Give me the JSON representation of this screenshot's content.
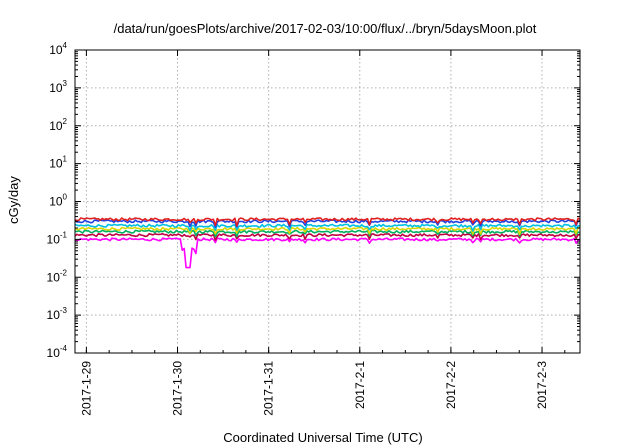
{
  "chart_data": {
    "type": "line",
    "title": "/data/run/goesPlots/archive/2017-02-03/10:00/flux/../bryn/5daysMoon.plot",
    "xlabel": "Coordinated Universal Time (UTC)",
    "ylabel": "cGy/day",
    "y_scale": "log",
    "ylim": [
      0.0001,
      10000
    ],
    "y_ticks": [
      {
        "base": "10",
        "exp": "-4",
        "value": 0.0001
      },
      {
        "base": "10",
        "exp": "-3",
        "value": 0.001
      },
      {
        "base": "10",
        "exp": "-2",
        "value": 0.01
      },
      {
        "base": "10",
        "exp": "-1",
        "value": 0.1
      },
      {
        "base": "10",
        "exp": "0",
        "value": 1
      },
      {
        "base": "10",
        "exp": "1",
        "value": 10
      },
      {
        "base": "10",
        "exp": "2",
        "value": 100
      },
      {
        "base": "10",
        "exp": "3",
        "value": 1000
      },
      {
        "base": "10",
        "exp": "4",
        "value": 10000
      }
    ],
    "x_ticks": [
      "2017-1-29",
      "2017-1-30",
      "2017-1-31",
      "2017-2-1",
      "2017-2-2",
      "2017-2-3"
    ],
    "xlim": [
      "2017-01-28T21:00",
      "2017-02-03T10:00"
    ],
    "grid": true,
    "series_levels": [
      {
        "color": "#ff00ff",
        "value": 0.1
      },
      {
        "color": "#c00040",
        "value": 0.13
      },
      {
        "color": "#00b060",
        "value": 0.16
      },
      {
        "color": "#d8d800",
        "value": 0.19
      },
      {
        "color": "#00c0e0",
        "value": 0.23
      },
      {
        "color": "#2040e0",
        "value": 0.3
      },
      {
        "color": "#e02020",
        "value": 0.34
      }
    ],
    "notable_dip": {
      "date": "2017-01-30T03:00",
      "value": 0.018
    }
  }
}
